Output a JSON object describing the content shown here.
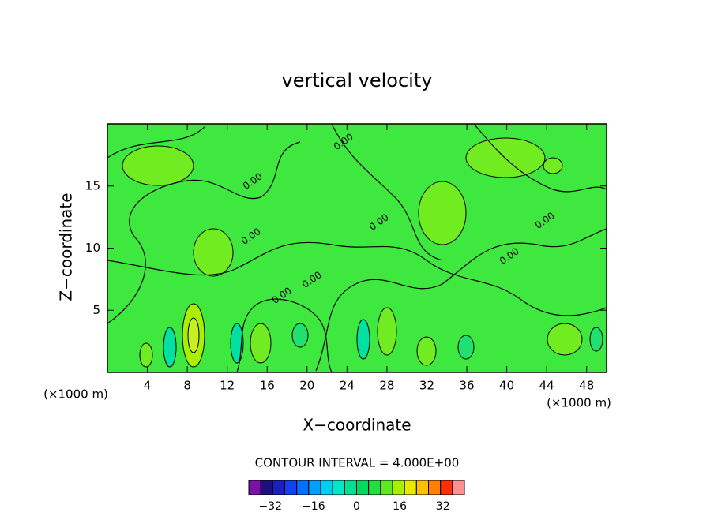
{
  "chart_data": {
    "type": "contour",
    "title": "vertical velocity",
    "xlabel": "X−coordinate",
    "ylabel": "Z−coordinate",
    "x_unit": "(×1000 m)",
    "y_unit": "(×1000 m)",
    "xlim": [
      0,
      50
    ],
    "xticks": [
      4,
      8,
      12,
      16,
      20,
      24,
      28,
      32,
      36,
      40,
      44,
      48
    ],
    "ylim": [
      0,
      20
    ],
    "yticks": [
      5,
      10,
      15
    ],
    "field_color": "#3fe83f",
    "contour_label": "0.00",
    "contour_interval": "CONTOUR INTERVAL = 4.000E+00",
    "colorbar": {
      "clim": [
        -40,
        40
      ],
      "colors": [
        "#7a10a8",
        "#1c1080",
        "#1a20c0",
        "#1040f0",
        "#0070ff",
        "#00a0ff",
        "#00d0f0",
        "#00e8c8",
        "#00e090",
        "#00d860",
        "#20e040",
        "#60e820",
        "#a8f000",
        "#e8e800",
        "#ffc000",
        "#ff8000",
        "#ff3000",
        "#ff9090"
      ],
      "ticks": [
        {
          "value": -32,
          "label": "−32"
        },
        {
          "value": -16,
          "label": "−16"
        },
        0,
        16,
        32
      ]
    }
  }
}
